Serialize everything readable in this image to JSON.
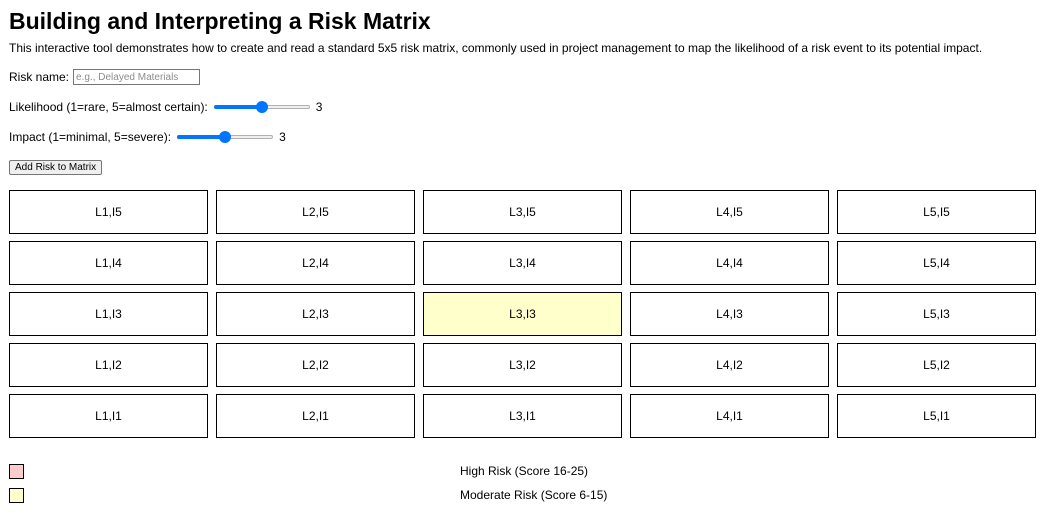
{
  "page": {
    "title": "Building and Interpreting a Risk Matrix",
    "intro": "This interactive tool demonstrates how to create and read a standard 5x5 risk matrix, commonly used in project management to map the likelihood of a risk event to its potential impact."
  },
  "form": {
    "risk_name_label": "Risk name:",
    "risk_name_value": "",
    "risk_name_placeholder": "e.g., Delayed Materials",
    "likelihood_label": "Likelihood (1=rare, 5=almost certain):",
    "likelihood": {
      "value": 3,
      "display": "3",
      "min": 1,
      "max": 5
    },
    "impact_label": "Impact (1=minimal, 5=severe):",
    "impact": {
      "value": 3,
      "display": "3",
      "min": 1,
      "max": 5
    },
    "add_button_label": "Add Risk to Matrix"
  },
  "matrix": {
    "rows": [
      {
        "cells": [
          {
            "label": "L1,I5"
          },
          {
            "label": "L2,I5"
          },
          {
            "label": "L3,I5"
          },
          {
            "label": "L4,I5"
          },
          {
            "label": "L5,I5"
          }
        ]
      },
      {
        "cells": [
          {
            "label": "L1,I4"
          },
          {
            "label": "L2,I4"
          },
          {
            "label": "L3,I4"
          },
          {
            "label": "L4,I4"
          },
          {
            "label": "L5,I4"
          }
        ]
      },
      {
        "cells": [
          {
            "label": "L1,I3"
          },
          {
            "label": "L2,I3"
          },
          {
            "label": "L3,I3",
            "highlight": "moderate"
          },
          {
            "label": "L4,I3"
          },
          {
            "label": "L5,I3"
          }
        ]
      },
      {
        "cells": [
          {
            "label": "L1,I2"
          },
          {
            "label": "L2,I2"
          },
          {
            "label": "L3,I2"
          },
          {
            "label": "L4,I2"
          },
          {
            "label": "L5,I2"
          }
        ]
      },
      {
        "cells": [
          {
            "label": "L1,I1"
          },
          {
            "label": "L2,I1"
          },
          {
            "label": "L3,I1"
          },
          {
            "label": "L4,I1"
          },
          {
            "label": "L5,I1"
          }
        ]
      }
    ]
  },
  "legend": {
    "items": [
      {
        "label": "High Risk (Score 16-25)",
        "color": "#ffcccc"
      },
      {
        "label": "Moderate Risk (Score 6-15)",
        "color": "#ffffcc"
      }
    ]
  },
  "colors": {
    "accent": "#0075ff",
    "high": "#ffcccc",
    "moderate": "#ffffcc",
    "cell_default": "#ffffff"
  }
}
